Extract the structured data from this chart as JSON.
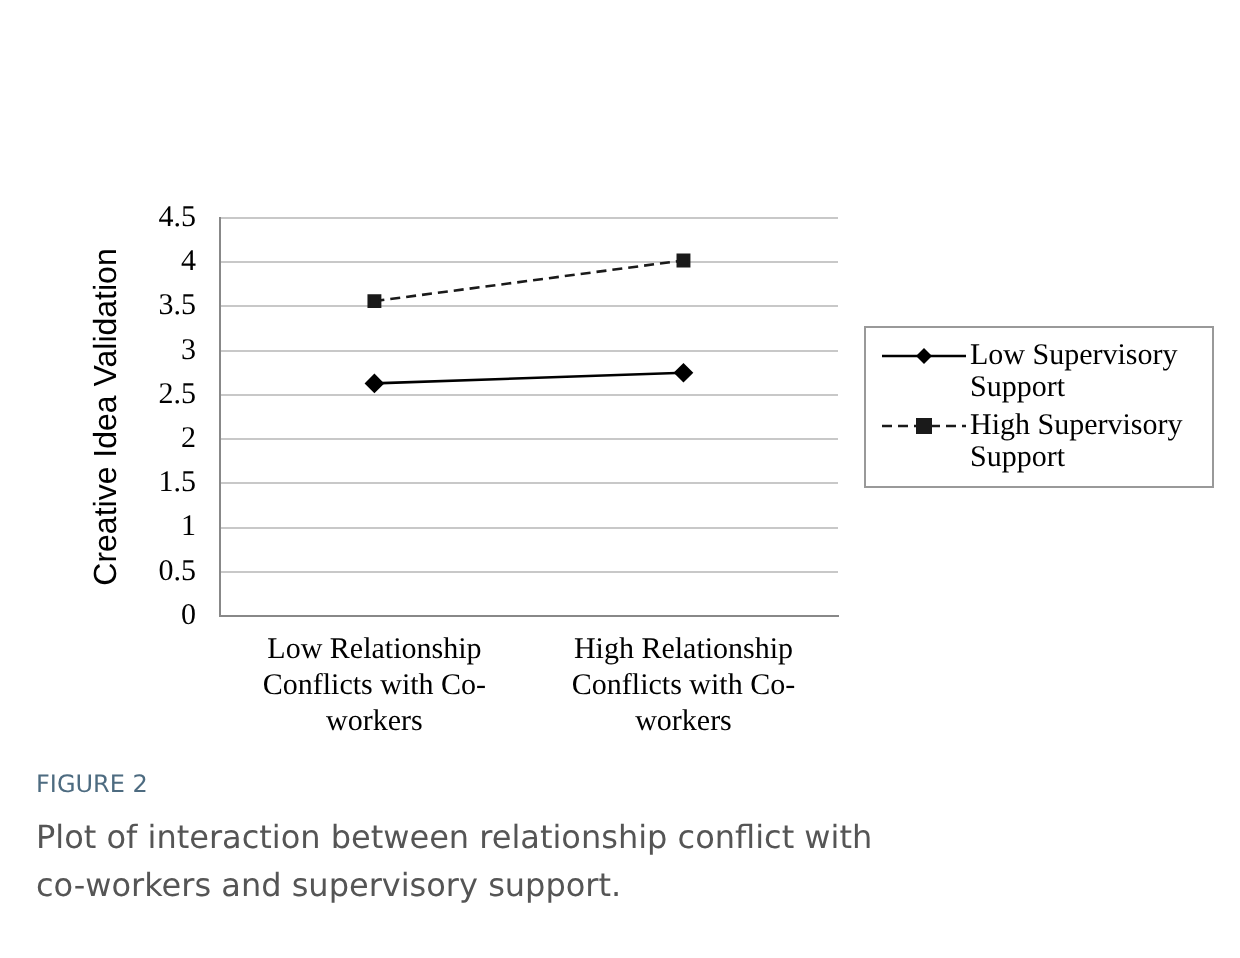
{
  "chart_data": {
    "type": "line",
    "ylabel": "Creative Idea Validation",
    "categories": [
      "Low Relationship Conflicts with Co-workers",
      "High Relationship Conflicts with Co-workers"
    ],
    "series": [
      {
        "name": "Low Supervisory Support",
        "color": "#000000",
        "values": [
          2.63,
          2.75
        ],
        "marker": "diamond",
        "line_style": "solid"
      },
      {
        "name": "High Supervisory Support",
        "color": "#1a1a1a",
        "values": [
          3.56,
          4.02
        ],
        "marker": "square",
        "line_style": "dashed"
      }
    ],
    "ylim": [
      0,
      4.5
    ],
    "yticks": [
      0,
      0.5,
      1,
      1.5,
      2,
      2.5,
      3,
      3.5,
      4,
      4.5
    ],
    "grid": "y",
    "legend": "right",
    "annotations": [
      "FIGURE 2",
      "Plot of interaction between relationship conflict with co-workers and supervisory support."
    ]
  }
}
